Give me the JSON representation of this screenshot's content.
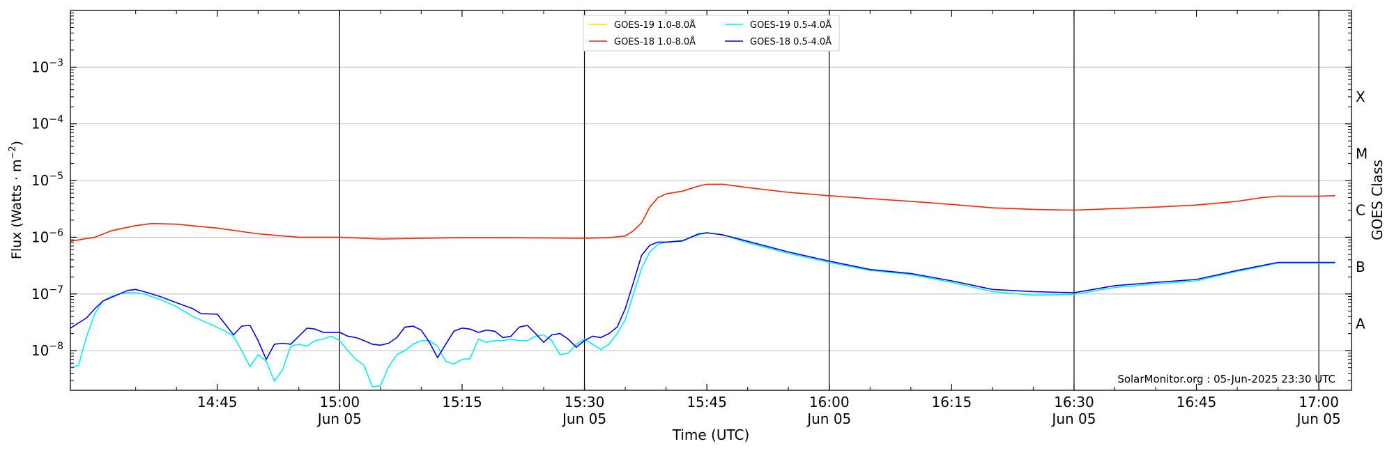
{
  "chart_data": {
    "type": "line",
    "xlabel": "Time (UTC)",
    "ylabel_main": "Flux (Watts · m",
    "ylabel_exp": "−2",
    "ylabel_close": ")",
    "right_label": "GOES Class",
    "ylim": [
      2e-09,
      0.01
    ],
    "yscale": "log",
    "xlim": [
      "14:27",
      "17:04"
    ],
    "grid": "horizontal",
    "legend_position": "top-center",
    "y_ticks": [
      {
        "value": 1e-08,
        "base": "10",
        "exp": "−8"
      },
      {
        "value": 1e-07,
        "base": "10",
        "exp": "−7"
      },
      {
        "value": 1e-06,
        "base": "10",
        "exp": "−6"
      },
      {
        "value": 1e-05,
        "base": "10",
        "exp": "−5"
      },
      {
        "value": 0.0001,
        "base": "10",
        "exp": "−4"
      },
      {
        "value": 0.001,
        "base": "10",
        "exp": "−3"
      }
    ],
    "x_ticks": [
      {
        "time": "14:45",
        "label": "14:45",
        "sub": ""
      },
      {
        "time": "15:00",
        "label": "15:00",
        "sub": "Jun 05"
      },
      {
        "time": "15:15",
        "label": "15:15",
        "sub": ""
      },
      {
        "time": "15:30",
        "label": "15:30",
        "sub": "Jun 05"
      },
      {
        "time": "15:45",
        "label": "15:45",
        "sub": ""
      },
      {
        "time": "16:00",
        "label": "16:00",
        "sub": "Jun 05"
      },
      {
        "time": "16:15",
        "label": "16:15",
        "sub": ""
      },
      {
        "time": "16:30",
        "label": "16:30",
        "sub": "Jun 05"
      },
      {
        "time": "16:45",
        "label": "16:45",
        "sub": ""
      },
      {
        "time": "17:00",
        "label": "17:00",
        "sub": "Jun 05"
      }
    ],
    "vertical_markers": [
      "15:00",
      "15:30",
      "16:00",
      "16:30",
      "17:00"
    ],
    "classes": [
      {
        "label": "A",
        "value": 3e-08
      },
      {
        "label": "B",
        "value": 3e-07
      },
      {
        "label": "C",
        "value": 3e-06
      },
      {
        "label": "M",
        "value": 3e-05
      },
      {
        "label": "X",
        "value": 0.0003
      }
    ],
    "credit": "SolarMonitor.org : 05-Jun-2025 23:30 UTC",
    "series": [
      {
        "name": "GOES-19 1.0-8.0Å",
        "color": "#ffd700",
        "points": []
      },
      {
        "name": "GOES-18 1.0-8.0Å",
        "color": "#ff2000",
        "points": [
          [
            "14:27",
            8.5e-07
          ],
          [
            "14:30",
            1e-06
          ],
          [
            "14:32",
            1.3e-06
          ],
          [
            "14:35",
            1.6e-06
          ],
          [
            "14:37",
            1.75e-06
          ],
          [
            "14:40",
            1.7e-06
          ],
          [
            "14:45",
            1.45e-06
          ],
          [
            "14:50",
            1.15e-06
          ],
          [
            "14:55",
            1e-06
          ],
          [
            "15:00",
            1e-06
          ],
          [
            "15:05",
            9.3e-07
          ],
          [
            "15:10",
            9.6e-07
          ],
          [
            "15:15",
            9.8e-07
          ],
          [
            "15:20",
            9.8e-07
          ],
          [
            "15:25",
            9.7e-07
          ],
          [
            "15:30",
            9.6e-07
          ],
          [
            "15:33",
            9.8e-07
          ],
          [
            "15:35",
            1.05e-06
          ],
          [
            "15:36",
            1.3e-06
          ],
          [
            "15:37",
            1.8e-06
          ],
          [
            "15:38",
            3.4e-06
          ],
          [
            "15:39",
            5e-06
          ],
          [
            "15:40",
            5.8e-06
          ],
          [
            "15:42",
            6.5e-06
          ],
          [
            "15:44",
            8e-06
          ],
          [
            "15:45",
            8.6e-06
          ],
          [
            "15:47",
            8.6e-06
          ],
          [
            "15:50",
            7.5e-06
          ],
          [
            "15:55",
            6.2e-06
          ],
          [
            "16:00",
            5.4e-06
          ],
          [
            "16:05",
            4.8e-06
          ],
          [
            "16:10",
            4.3e-06
          ],
          [
            "16:15",
            3.8e-06
          ],
          [
            "16:20",
            3.3e-06
          ],
          [
            "16:25",
            3.1e-06
          ],
          [
            "16:30",
            3e-06
          ],
          [
            "16:35",
            3.2e-06
          ],
          [
            "16:40",
            3.4e-06
          ],
          [
            "16:45",
            3.7e-06
          ],
          [
            "16:50",
            4.3e-06
          ],
          [
            "16:53",
            5e-06
          ],
          [
            "16:55",
            5.3e-06
          ],
          [
            "17:00",
            5.3e-06
          ],
          [
            "17:02",
            5.4e-06
          ]
        ]
      },
      {
        "name": "GOES-19 0.5-4.0Å",
        "color": "#00f0f0",
        "points": [
          [
            "14:27",
            5e-09
          ],
          [
            "14:28",
            5.5e-09
          ],
          [
            "14:29",
            1.8e-08
          ],
          [
            "14:30",
            4.5e-08
          ],
          [
            "14:31",
            7.5e-08
          ],
          [
            "14:32",
            9e-08
          ],
          [
            "14:33",
            1e-07
          ],
          [
            "14:34",
            1.05e-07
          ],
          [
            "14:35",
            1.05e-07
          ],
          [
            "14:36",
            1e-07
          ],
          [
            "14:38",
            8e-08
          ],
          [
            "14:40",
            6e-08
          ],
          [
            "14:42",
            4e-08
          ],
          [
            "14:44",
            3e-08
          ],
          [
            "14:46",
            2.2e-08
          ],
          [
            "14:47",
            1.8e-08
          ],
          [
            "14:48",
            1e-08
          ],
          [
            "14:49",
            5.2e-09
          ],
          [
            "14:50",
            8.5e-09
          ],
          [
            "14:51",
            6.5e-09
          ],
          [
            "14:52",
            2.9e-09
          ],
          [
            "14:53",
            4.6e-09
          ],
          [
            "14:54",
            1.2e-08
          ],
          [
            "14:55",
            1.3e-08
          ],
          [
            "14:56",
            1.2e-08
          ],
          [
            "14:57",
            1.5e-08
          ],
          [
            "14:58",
            1.6e-08
          ],
          [
            "14:59",
            1.8e-08
          ],
          [
            "15:00",
            1.5e-08
          ],
          [
            "15:01",
            1e-08
          ],
          [
            "15:02",
            7e-09
          ],
          [
            "15:03",
            5.5e-09
          ],
          [
            "15:04",
            2.3e-09
          ],
          [
            "15:05",
            2.4e-09
          ],
          [
            "15:06",
            5.2e-09
          ],
          [
            "15:07",
            8.5e-09
          ],
          [
            "15:08",
            1e-08
          ],
          [
            "15:09",
            1.3e-08
          ],
          [
            "15:10",
            1.5e-08
          ],
          [
            "15:11",
            1.5e-08
          ],
          [
            "15:12",
            1.2e-08
          ],
          [
            "15:13",
            6.5e-09
          ],
          [
            "15:14",
            5.8e-09
          ],
          [
            "15:15",
            7e-09
          ],
          [
            "15:16",
            7.2e-09
          ],
          [
            "15:17",
            1.6e-08
          ],
          [
            "15:18",
            1.4e-08
          ],
          [
            "15:19",
            1.5e-08
          ],
          [
            "15:20",
            1.5e-08
          ],
          [
            "15:21",
            1.6e-08
          ],
          [
            "15:22",
            1.5e-08
          ],
          [
            "15:23",
            1.5e-08
          ],
          [
            "15:24",
            1.8e-08
          ],
          [
            "15:25",
            1.9e-08
          ],
          [
            "15:26",
            1.5e-08
          ],
          [
            "15:27",
            8.5e-09
          ],
          [
            "15:28",
            9e-09
          ],
          [
            "15:29",
            1.3e-08
          ],
          [
            "15:30",
            1.6e-08
          ],
          [
            "15:31",
            1.3e-08
          ],
          [
            "15:32",
            1.05e-08
          ],
          [
            "15:33",
            1.3e-08
          ],
          [
            "15:34",
            2e-08
          ],
          [
            "15:35",
            3.5e-08
          ],
          [
            "15:36",
            1e-07
          ],
          [
            "15:37",
            2.8e-07
          ],
          [
            "15:38",
            5.5e-07
          ],
          [
            "15:39",
            7.5e-07
          ],
          [
            "15:40",
            8.2e-07
          ],
          [
            "15:42",
            8.8e-07
          ],
          [
            "15:44",
            1.1e-06
          ],
          [
            "15:45",
            1.2e-06
          ],
          [
            "15:47",
            1.1e-06
          ],
          [
            "15:50",
            8e-07
          ],
          [
            "15:55",
            5.2e-07
          ],
          [
            "16:00",
            3.6e-07
          ],
          [
            "16:05",
            2.6e-07
          ],
          [
            "16:10",
            2.2e-07
          ],
          [
            "16:15",
            1.6e-07
          ],
          [
            "16:20",
            1.1e-07
          ],
          [
            "16:25",
            9.5e-08
          ],
          [
            "16:30",
            9.8e-08
          ],
          [
            "16:35",
            1.3e-07
          ],
          [
            "16:40",
            1.5e-07
          ],
          [
            "16:45",
            1.7e-07
          ],
          [
            "16:50",
            2.5e-07
          ],
          [
            "16:55",
            3.5e-07
          ],
          [
            "17:00",
            3.5e-07
          ],
          [
            "17:02",
            3.5e-07
          ]
        ]
      },
      {
        "name": "GOES-18 0.5-4.0Å",
        "color": "#0000ee",
        "points": [
          [
            "14:27",
            2.5e-08
          ],
          [
            "14:29",
            3.8e-08
          ],
          [
            "14:30",
            5.5e-08
          ],
          [
            "14:31",
            7.5e-08
          ],
          [
            "14:33",
            1e-07
          ],
          [
            "14:34",
            1.15e-07
          ],
          [
            "14:35",
            1.2e-07
          ],
          [
            "14:36",
            1.1e-07
          ],
          [
            "14:38",
            9e-08
          ],
          [
            "14:40",
            7e-08
          ],
          [
            "14:42",
            5.5e-08
          ],
          [
            "14:43",
            4.5e-08
          ],
          [
            "14:45",
            4.4e-08
          ],
          [
            "14:46",
            2.9e-08
          ],
          [
            "14:47",
            1.9e-08
          ],
          [
            "14:48",
            2.7e-08
          ],
          [
            "14:49",
            2.8e-08
          ],
          [
            "14:50",
            1.5e-08
          ],
          [
            "14:51",
            7e-09
          ],
          [
            "14:52",
            1.3e-08
          ],
          [
            "14:53",
            1.35e-08
          ],
          [
            "14:54",
            1.3e-08
          ],
          [
            "14:55",
            1.8e-08
          ],
          [
            "14:56",
            2.5e-08
          ],
          [
            "14:57",
            2.4e-08
          ],
          [
            "14:58",
            2.1e-08
          ],
          [
            "15:00",
            2.1e-08
          ],
          [
            "15:01",
            1.8e-08
          ],
          [
            "15:02",
            1.7e-08
          ],
          [
            "15:03",
            1.5e-08
          ],
          [
            "15:04",
            1.3e-08
          ],
          [
            "15:05",
            1.25e-08
          ],
          [
            "15:06",
            1.35e-08
          ],
          [
            "15:07",
            1.7e-08
          ],
          [
            "15:08",
            2.6e-08
          ],
          [
            "15:09",
            2.7e-08
          ],
          [
            "15:10",
            2.3e-08
          ],
          [
            "15:11",
            1.4e-08
          ],
          [
            "15:12",
            7.5e-09
          ],
          [
            "15:13",
            1.3e-08
          ],
          [
            "15:14",
            2.2e-08
          ],
          [
            "15:15",
            2.5e-08
          ],
          [
            "15:16",
            2.4e-08
          ],
          [
            "15:17",
            2.1e-08
          ],
          [
            "15:18",
            2.3e-08
          ],
          [
            "15:19",
            2.2e-08
          ],
          [
            "15:20",
            1.7e-08
          ],
          [
            "15:21",
            1.8e-08
          ],
          [
            "15:22",
            2.6e-08
          ],
          [
            "15:23",
            2.8e-08
          ],
          [
            "15:24",
            2e-08
          ],
          [
            "15:25",
            1.4e-08
          ],
          [
            "15:26",
            1.9e-08
          ],
          [
            "15:27",
            2e-08
          ],
          [
            "15:28",
            1.6e-08
          ],
          [
            "15:29",
            1.15e-08
          ],
          [
            "15:30",
            1.5e-08
          ],
          [
            "15:31",
            1.8e-08
          ],
          [
            "15:32",
            1.7e-08
          ],
          [
            "15:33",
            2e-08
          ],
          [
            "15:34",
            2.6e-08
          ],
          [
            "15:35",
            5.5e-08
          ],
          [
            "15:36",
            1.6e-07
          ],
          [
            "15:37",
            4.8e-07
          ],
          [
            "15:38",
            7.2e-07
          ],
          [
            "15:39",
            8.2e-07
          ],
          [
            "15:40",
            8.2e-07
          ],
          [
            "15:42",
            8.6e-07
          ],
          [
            "15:44",
            1.15e-06
          ],
          [
            "15:45",
            1.2e-06
          ],
          [
            "15:47",
            1.1e-06
          ],
          [
            "15:50",
            8.5e-07
          ],
          [
            "15:55",
            5.5e-07
          ],
          [
            "16:00",
            3.8e-07
          ],
          [
            "16:05",
            2.7e-07
          ],
          [
            "16:10",
            2.3e-07
          ],
          [
            "16:15",
            1.7e-07
          ],
          [
            "16:20",
            1.2e-07
          ],
          [
            "16:25",
            1.1e-07
          ],
          [
            "16:30",
            1.05e-07
          ],
          [
            "16:35",
            1.4e-07
          ],
          [
            "16:40",
            1.6e-07
          ],
          [
            "16:45",
            1.8e-07
          ],
          [
            "16:50",
            2.6e-07
          ],
          [
            "16:55",
            3.6e-07
          ],
          [
            "17:00",
            3.6e-07
          ],
          [
            "17:02",
            3.6e-07
          ]
        ]
      }
    ]
  }
}
